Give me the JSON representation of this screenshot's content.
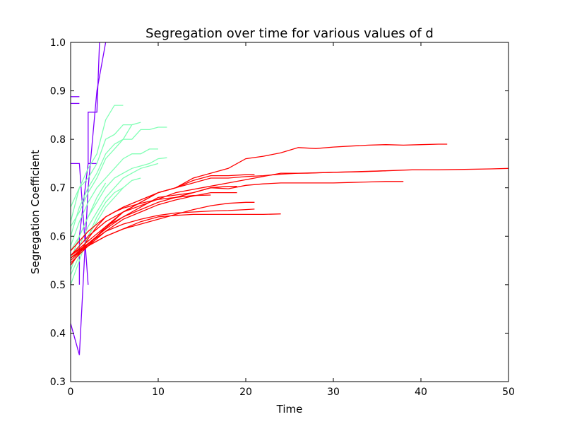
{
  "chart_data": {
    "type": "line",
    "title": "Segregation over time for various values of d",
    "xlabel": "Time",
    "ylabel": "Segregation Coefficient",
    "xlim": [
      0,
      50
    ],
    "ylim": [
      0.3,
      1.0
    ],
    "xticks": [
      "0",
      "10",
      "20",
      "30",
      "40",
      "50"
    ],
    "yticks": [
      "0.3",
      "0.4",
      "0.5",
      "0.6",
      "0.7",
      "0.8",
      "0.9",
      "1.0"
    ],
    "grid": false,
    "legend": "none",
    "series": [
      {
        "color": "#8000ff",
        "x": [
          0,
          1
        ],
        "y": [
          0.888,
          0.888
        ]
      },
      {
        "color": "#8000ff",
        "x": [
          0,
          1
        ],
        "y": [
          0.874,
          0.874
        ]
      },
      {
        "color": "#8000ff",
        "x": [
          0,
          1,
          2,
          3,
          4
        ],
        "y": [
          0.42,
          0.355,
          0.7,
          0.9,
          1.0
        ]
      },
      {
        "color": "#8000ff",
        "x": [
          0,
          1,
          2
        ],
        "y": [
          0.75,
          0.75,
          0.5
        ]
      },
      {
        "color": "#8000ff",
        "x": [
          1,
          1,
          2,
          2,
          3,
          3.3
        ],
        "y": [
          0.5,
          0.6,
          0.75,
          0.856,
          0.856,
          1.0
        ]
      },
      {
        "color": "#8000ff",
        "x": [
          2,
          3
        ],
        "y": [
          0.75,
          0.75
        ]
      },
      {
        "color": "#80ffb4",
        "x": [
          0,
          1,
          2,
          3,
          4,
          5,
          6
        ],
        "y": [
          0.63,
          0.7,
          0.74,
          0.77,
          0.84,
          0.87,
          0.87
        ]
      },
      {
        "color": "#80ffb4",
        "x": [
          0,
          1,
          2,
          3,
          4,
          5,
          6,
          7
        ],
        "y": [
          0.66,
          0.7,
          0.72,
          0.75,
          0.8,
          0.81,
          0.83,
          0.83
        ]
      },
      {
        "color": "#80ffb4",
        "x": [
          0,
          1,
          2,
          3,
          4,
          5,
          6,
          7,
          8,
          9,
          10,
          11
        ],
        "y": [
          0.6,
          0.66,
          0.7,
          0.73,
          0.77,
          0.79,
          0.8,
          0.8,
          0.82,
          0.82,
          0.825,
          0.825
        ]
      },
      {
        "color": "#80ffb4",
        "x": [
          0,
          1,
          2,
          3,
          4,
          5,
          6,
          7,
          8
        ],
        "y": [
          0.62,
          0.65,
          0.69,
          0.72,
          0.76,
          0.78,
          0.8,
          0.83,
          0.835
        ]
      },
      {
        "color": "#80ffb4",
        "x": [
          0,
          1,
          2,
          3,
          4,
          5,
          6,
          7,
          8,
          9,
          10
        ],
        "y": [
          0.58,
          0.63,
          0.67,
          0.7,
          0.72,
          0.74,
          0.76,
          0.77,
          0.77,
          0.78,
          0.78
        ]
      },
      {
        "color": "#80ffb4",
        "x": [
          0,
          1,
          2,
          3,
          4,
          5,
          6,
          7,
          8,
          9,
          10,
          11
        ],
        "y": [
          0.55,
          0.6,
          0.64,
          0.67,
          0.7,
          0.72,
          0.73,
          0.74,
          0.745,
          0.75,
          0.76,
          0.762
        ]
      },
      {
        "color": "#80ffb4",
        "x": [
          0,
          1,
          2,
          3,
          4,
          5,
          6,
          7,
          8,
          9,
          10
        ],
        "y": [
          0.53,
          0.58,
          0.62,
          0.65,
          0.68,
          0.7,
          0.72,
          0.73,
          0.74,
          0.745,
          0.75
        ]
      },
      {
        "color": "#80ffb4",
        "x": [
          0,
          1,
          2,
          3,
          4,
          5,
          6,
          7,
          8
        ],
        "y": [
          0.5,
          0.55,
          0.6,
          0.63,
          0.66,
          0.68,
          0.7,
          0.715,
          0.72
        ]
      },
      {
        "color": "#80ffb4",
        "x": [
          0,
          1,
          2,
          3,
          4,
          5,
          6
        ],
        "y": [
          0.52,
          0.56,
          0.6,
          0.64,
          0.67,
          0.69,
          0.7
        ]
      },
      {
        "color": "#80ffb4",
        "x": [
          0,
          1,
          2,
          3,
          4
        ],
        "y": [
          0.57,
          0.6,
          0.64,
          0.68,
          0.71
        ]
      },
      {
        "color": "#ff0000",
        "x": [
          0,
          2,
          4,
          6,
          8,
          10,
          12,
          14,
          16,
          18,
          20,
          22,
          24,
          26,
          28,
          30,
          32,
          34,
          36,
          38,
          40,
          42,
          43
        ],
        "y": [
          0.56,
          0.6,
          0.63,
          0.65,
          0.67,
          0.69,
          0.7,
          0.72,
          0.73,
          0.74,
          0.76,
          0.765,
          0.772,
          0.783,
          0.781,
          0.784,
          0.786,
          0.788,
          0.789,
          0.788,
          0.789,
          0.79,
          0.79
        ]
      },
      {
        "color": "#ff0000",
        "x": [
          0,
          3,
          6,
          9,
          12,
          15,
          18,
          21,
          24,
          27,
          30,
          33,
          36,
          39,
          42,
          45,
          48,
          50
        ],
        "y": [
          0.55,
          0.6,
          0.65,
          0.67,
          0.69,
          0.7,
          0.71,
          0.72,
          0.73,
          0.73,
          0.732,
          0.733,
          0.735,
          0.737,
          0.737,
          0.738,
          0.739,
          0.74
        ]
      },
      {
        "color": "#ff0000",
        "x": [
          0,
          2,
          4,
          6,
          8,
          10,
          12,
          14,
          16,
          18,
          20,
          22,
          24,
          26,
          28,
          30,
          32,
          34,
          36,
          38
        ],
        "y": [
          0.545,
          0.58,
          0.62,
          0.64,
          0.66,
          0.68,
          0.685,
          0.69,
          0.7,
          0.698,
          0.705,
          0.708,
          0.71,
          0.71,
          0.71,
          0.71,
          0.711,
          0.712,
          0.713,
          0.713
        ]
      },
      {
        "color": "#ff0000",
        "x": [
          0,
          2,
          4,
          6,
          8,
          10,
          12,
          14,
          16,
          18,
          20,
          22,
          24,
          26,
          28,
          30,
          32,
          34,
          36
        ],
        "y": [
          0.57,
          0.61,
          0.64,
          0.66,
          0.675,
          0.69,
          0.7,
          0.71,
          0.72,
          0.72,
          0.723,
          0.725,
          0.728,
          0.73,
          0.731,
          0.732,
          0.733,
          0.734,
          0.735
        ]
      },
      {
        "color": "#ff0000",
        "x": [
          0,
          2,
          4,
          6,
          8,
          10,
          12,
          14,
          16,
          18,
          20,
          21
        ],
        "y": [
          0.56,
          0.59,
          0.62,
          0.65,
          0.67,
          0.69,
          0.7,
          0.715,
          0.725,
          0.725,
          0.727,
          0.727
        ]
      },
      {
        "color": "#ff0000",
        "x": [
          0,
          2,
          4,
          6,
          8,
          10,
          12,
          14,
          16,
          18,
          19
        ],
        "y": [
          0.555,
          0.585,
          0.615,
          0.64,
          0.655,
          0.67,
          0.68,
          0.69,
          0.7,
          0.703,
          0.703
        ]
      },
      {
        "color": "#ff0000",
        "x": [
          0,
          2,
          4,
          6,
          8,
          10,
          12,
          14,
          16,
          18,
          19
        ],
        "y": [
          0.555,
          0.58,
          0.61,
          0.635,
          0.65,
          0.665,
          0.675,
          0.683,
          0.69,
          0.69,
          0.69
        ]
      },
      {
        "color": "#ff0000",
        "x": [
          0,
          2,
          4,
          6,
          8,
          10,
          12,
          14,
          16,
          18,
          20,
          21
        ],
        "y": [
          0.555,
          0.58,
          0.6,
          0.615,
          0.625,
          0.635,
          0.645,
          0.655,
          0.663,
          0.668,
          0.67,
          0.67
        ]
      },
      {
        "color": "#ff0000",
        "x": [
          0,
          2,
          4,
          6,
          8,
          10,
          12,
          14,
          16,
          18,
          20,
          21
        ],
        "y": [
          0.56,
          0.585,
          0.61,
          0.625,
          0.635,
          0.643,
          0.648,
          0.65,
          0.652,
          0.653,
          0.655,
          0.656
        ]
      },
      {
        "color": "#ff0000",
        "x": [
          0,
          2,
          4,
          6,
          8,
          10,
          12,
          14,
          16,
          18,
          20,
          22,
          24
        ],
        "y": [
          0.555,
          0.58,
          0.6,
          0.615,
          0.63,
          0.64,
          0.643,
          0.645,
          0.645,
          0.645,
          0.645,
          0.645,
          0.646
        ]
      },
      {
        "color": "#ff0000",
        "x": [
          0,
          1,
          2,
          3,
          4,
          5,
          6,
          7,
          8,
          9,
          10,
          12,
          14,
          16
        ],
        "y": [
          0.54,
          0.565,
          0.595,
          0.62,
          0.64,
          0.65,
          0.658,
          0.663,
          0.668,
          0.672,
          0.676,
          0.68,
          0.684,
          0.685
        ]
      }
    ]
  }
}
